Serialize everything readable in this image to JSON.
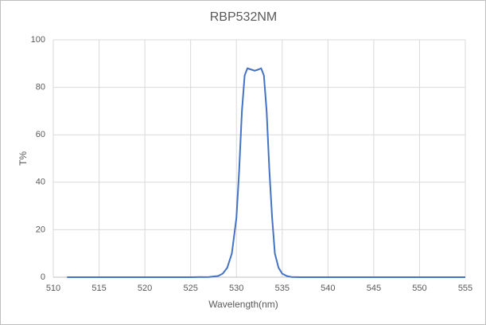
{
  "chart_data": {
    "type": "line",
    "title": "RBP532NM",
    "x_label": "Wavelength(nm)",
    "y_label": "T%",
    "x": [
      511.5,
      520,
      525,
      527,
      528,
      528.5,
      529,
      529.5,
      530,
      530.3,
      530.6,
      530.9,
      531.2,
      531.6,
      532,
      532.4,
      532.7,
      533,
      533.3,
      533.6,
      533.9,
      534.2,
      534.6,
      535,
      535.5,
      536,
      537,
      540,
      545,
      555
    ],
    "series": [
      {
        "name": "T%",
        "color": "#4472c4",
        "values": [
          0,
          0,
          0,
          0.1,
          0.5,
          1.5,
          4,
          10,
          25,
          45,
          70,
          85,
          88,
          87.5,
          87,
          87.5,
          88,
          85,
          70,
          45,
          25,
          10,
          4,
          1.5,
          0.5,
          0.1,
          0,
          0,
          0,
          0
        ]
      }
    ],
    "xlim": [
      510,
      555
    ],
    "xticks": [
      510,
      515,
      520,
      525,
      530,
      535,
      540,
      545,
      550,
      555
    ],
    "ylim": [
      0,
      100
    ],
    "yticks": [
      0,
      20,
      40,
      60,
      80,
      100
    ],
    "grid": true
  }
}
